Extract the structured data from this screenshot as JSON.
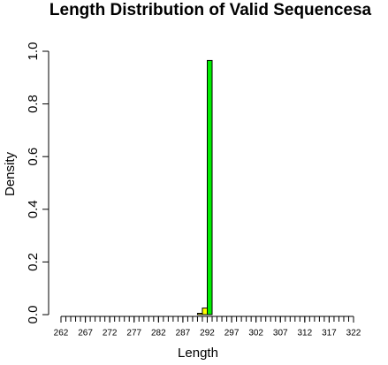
{
  "chart_data": {
    "type": "histogram",
    "title": "Length Distribution of Valid Sequencesa",
    "x_label": "Length",
    "y_label": "Density",
    "bins": [
      290,
      291,
      292,
      293
    ],
    "values": [
      0.005,
      0.025,
      0.965
    ],
    "colors": [
      "#ffff00",
      "#ffff00",
      "#00ee00"
    ],
    "xlim": [
      262,
      322
    ],
    "ylim": [
      0,
      1
    ],
    "xticks": [
      262,
      267,
      272,
      277,
      282,
      287,
      292,
      297,
      302,
      307,
      312,
      317,
      322
    ],
    "xminorticks": [
      262,
      263,
      264,
      265,
      266,
      267,
      268,
      269,
      270,
      271,
      272,
      273,
      274,
      275,
      276,
      277,
      278,
      279,
      280,
      281,
      282,
      283,
      284,
      285,
      286,
      287,
      288,
      289,
      290,
      291,
      292,
      293,
      294,
      295,
      296,
      297,
      298,
      299,
      300,
      301,
      302,
      303,
      304,
      305,
      306,
      307,
      308,
      309,
      310,
      311,
      312,
      313,
      314,
      315,
      316,
      317,
      318,
      319,
      320,
      321,
      322
    ],
    "yticks": [
      {
        "value": 0,
        "label": "0.0"
      },
      0.2,
      0.4,
      0.6,
      0.8,
      {
        "value": 1,
        "label": "1.0"
      }
    ]
  }
}
